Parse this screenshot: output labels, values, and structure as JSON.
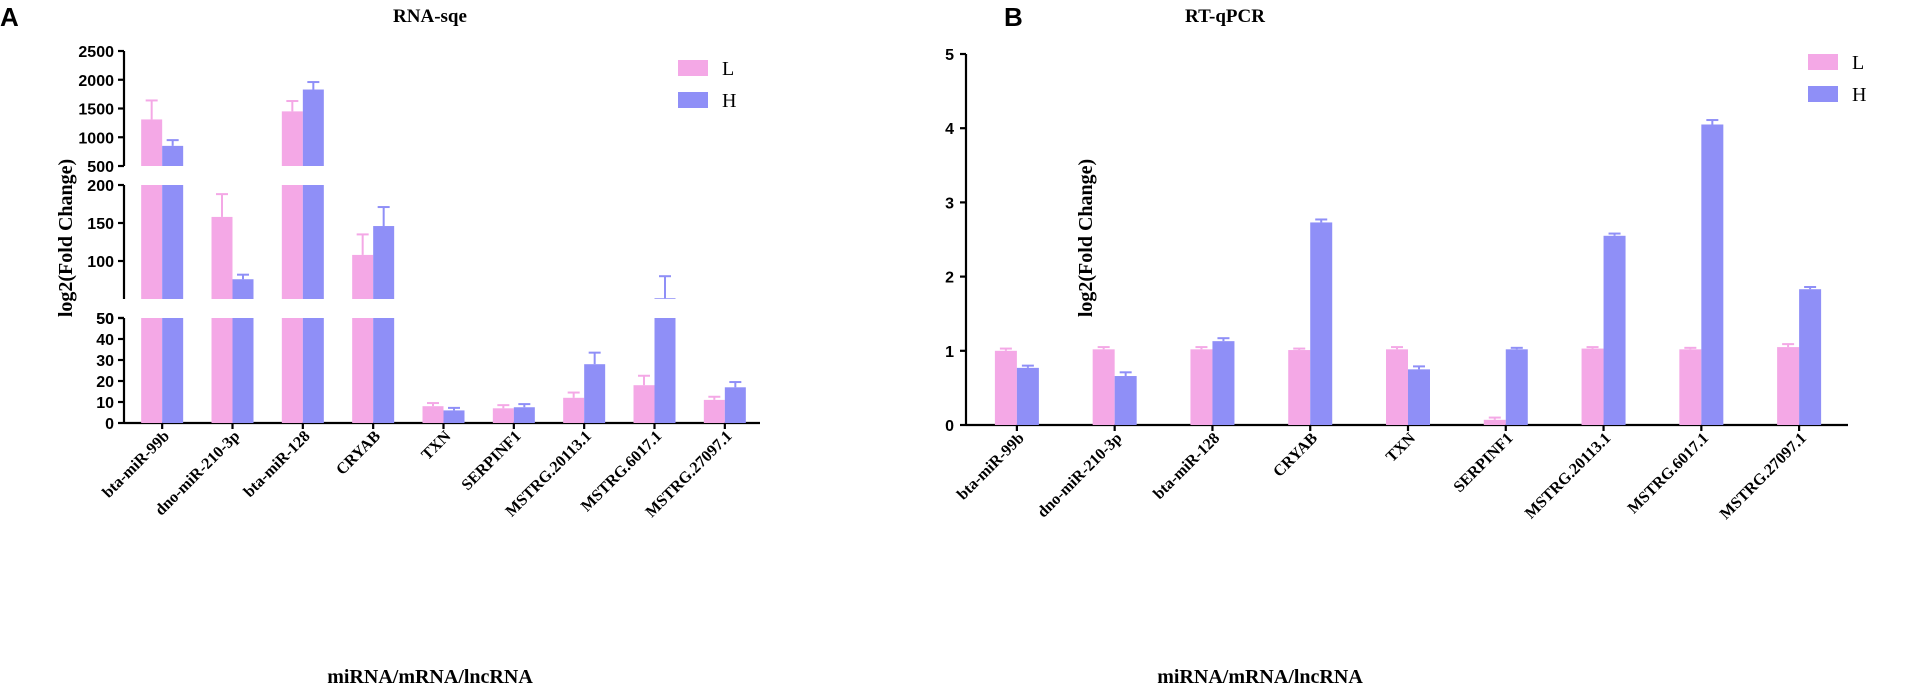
{
  "figure": {
    "panels": [
      "A",
      "B"
    ]
  },
  "chart_data": [
    {
      "type": "bar",
      "panel": "A",
      "title": "RNA-sqe",
      "xlabel": "miRNA/mRNA/lncRNA",
      "ylabel": "log2(Fold Change)",
      "categories": [
        "bta-miR-99b",
        "dno-miR-210-3p",
        "bta-miR-128",
        "CRYAB",
        "TXN",
        "SERPINF1",
        "MSTRG.20113.1",
        "MSTRG.6017.1",
        "MSTRG.27097.1"
      ],
      "series": [
        {
          "name": "L",
          "color": "#f4a8e6",
          "values": [
            1310,
            158,
            1450,
            108,
            8,
            7,
            12,
            18,
            11
          ],
          "errors": [
            330,
            30,
            180,
            27,
            1.5,
            1.5,
            2.5,
            4.5,
            1.5
          ]
        },
        {
          "name": "H",
          "color": "#8f8ff7",
          "values": [
            850,
            76,
            1830,
            146,
            6,
            7.5,
            28,
            51,
            17
          ],
          "errors": [
            100,
            6,
            130,
            25,
            1.2,
            1.5,
            5.5,
            29,
            2.5
          ]
        }
      ],
      "y_segments": [
        {
          "range": [
            0,
            50
          ],
          "ticks": [
            0,
            10,
            20,
            30,
            40,
            50
          ]
        },
        {
          "range": [
            50,
            200
          ],
          "ticks": [
            50,
            100,
            150,
            200
          ]
        },
        {
          "range": [
            500,
            2500
          ],
          "ticks": [
            500,
            1000,
            1500,
            2000,
            2500
          ]
        }
      ],
      "axis_break": true,
      "legend": "top-right"
    },
    {
      "type": "bar",
      "panel": "B",
      "title": "RT-qPCR",
      "xlabel": "miRNA/mRNA/lncRNA",
      "ylabel": "log2(Fold Change)",
      "categories": [
        "bta-miR-99b",
        "dno-miR-210-3p",
        "bta-miR-128",
        "CRYAB",
        "TXN",
        "SERPINF1",
        "MSTRG.20113.1",
        "MSTRG.6017.1",
        "MSTRG.27097.1"
      ],
      "series": [
        {
          "name": "L",
          "color": "#f4a8e6",
          "values": [
            1.0,
            1.02,
            1.02,
            1.01,
            1.02,
            0.07,
            1.03,
            1.02,
            1.05
          ],
          "errors": [
            0.03,
            0.03,
            0.03,
            0.02,
            0.03,
            0.03,
            0.02,
            0.02,
            0.04
          ]
        },
        {
          "name": "H",
          "color": "#8f8ff7",
          "values": [
            0.77,
            0.66,
            1.13,
            2.73,
            0.75,
            1.02,
            2.55,
            4.05,
            1.83
          ],
          "errors": [
            0.03,
            0.05,
            0.04,
            0.04,
            0.04,
            0.02,
            0.03,
            0.06,
            0.03
          ]
        }
      ],
      "ylim": [
        0,
        5
      ],
      "yticks": [
        0,
        1,
        2,
        3,
        4,
        5
      ],
      "legend": "top-right"
    }
  ]
}
